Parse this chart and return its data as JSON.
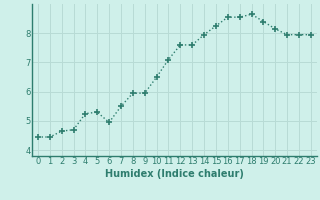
{
  "x": [
    0,
    1,
    2,
    3,
    4,
    5,
    6,
    7,
    8,
    9,
    10,
    11,
    12,
    13,
    14,
    15,
    16,
    17,
    18,
    19,
    20,
    21,
    22,
    23
  ],
  "y": [
    4.45,
    4.45,
    4.65,
    4.7,
    5.25,
    5.3,
    4.95,
    5.5,
    5.95,
    5.95,
    6.5,
    7.1,
    7.6,
    7.6,
    7.95,
    8.25,
    8.55,
    8.55,
    8.65,
    8.4,
    8.15,
    7.95,
    7.95,
    7.95
  ],
  "line_color": "#2e7d6e",
  "marker": "+",
  "marker_size": 4.0,
  "linewidth": 1.0,
  "linestyle": "dotted",
  "xlabel": "Humidex (Indice chaleur)",
  "xlim": [
    -0.5,
    23.5
  ],
  "ylim": [
    3.8,
    9.0
  ],
  "yticks": [
    4,
    5,
    6,
    7,
    8
  ],
  "xticks": [
    0,
    1,
    2,
    3,
    4,
    5,
    6,
    7,
    8,
    9,
    10,
    11,
    12,
    13,
    14,
    15,
    16,
    17,
    18,
    19,
    20,
    21,
    22,
    23
  ],
  "bg_color": "#cff0ea",
  "grid_color": "#b8dbd5",
  "tick_color": "#2e7d6e",
  "font_size": 6,
  "xlabel_fontsize": 7
}
